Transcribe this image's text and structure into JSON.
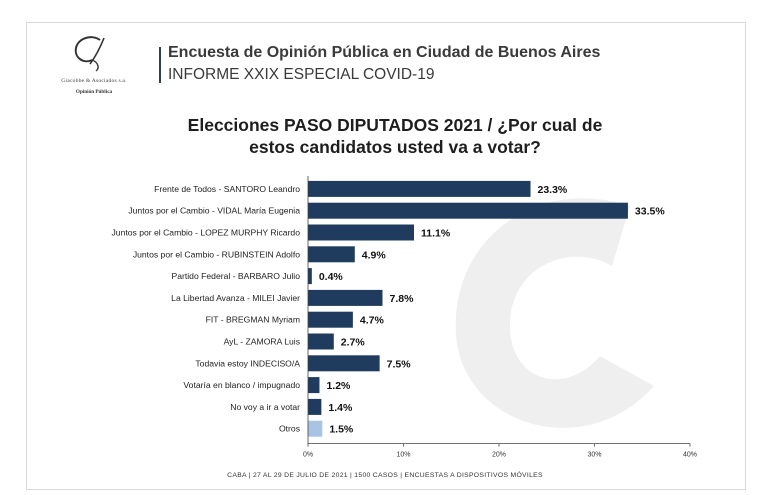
{
  "header": {
    "firm_name": "Giacobbe & Asociados s.a.",
    "firm_sub": "Opinión Pública",
    "title_line1": "Encuesta de Opinión Pública en Ciudad de Buenos Aires",
    "title_line2": "INFORME XXIX ESPECIAL COVID-19"
  },
  "chart_data": {
    "type": "bar",
    "orientation": "horizontal",
    "title": "Elecciones PASO DIPUTADOS 2021 / ¿Por cual de estos candidatos usted va a votar?",
    "title_line1": "Elecciones PASO DIPUTADOS 2021 / ¿Por cual de",
    "title_line2": "estos candidatos usted va a votar?",
    "categories": [
      "Frente de Todos - SANTORO Leandro",
      "Juntos por el Cambio - VIDAL María Eugenia",
      "Juntos por el Cambio - LOPEZ MURPHY Ricardo",
      "Juntos por el Cambio - RUBINSTEIN Adolfo",
      "Partido Federal - BARBARO Julio",
      "La Libertad Avanza - MILEI Javier",
      "FIT - BREGMAN Myriam",
      "AyL - ZAMORA Luis",
      "Todavia estoy INDECISO/A",
      "Votaría en blanco / impugnado",
      "No voy a ir a votar",
      "Otros"
    ],
    "values": [
      23.3,
      33.5,
      11.1,
      4.9,
      0.4,
      7.8,
      4.7,
      2.7,
      7.5,
      1.2,
      1.4,
      1.5
    ],
    "value_labels": [
      "23.3%",
      "33.5%",
      "11.1%",
      "4.9%",
      "0.4%",
      "7.8%",
      "4.7%",
      "2.7%",
      "7.5%",
      "1.2%",
      "1.4%",
      "1.5%"
    ],
    "xlim": [
      0,
      40
    ],
    "x_ticks": [
      "0%",
      "10%",
      "20%",
      "30%",
      "40%"
    ],
    "grid": false,
    "legend": "none",
    "bar_color": "#1f3c5e",
    "highlight_color": "#a9c4e3",
    "highlight_index": 11
  },
  "footer": "CABA | 27 AL 29 DE JULIO DE 2021 | 1500 CASOS | ENCUESTAS A DISPOSITIVOS MÓVILES"
}
